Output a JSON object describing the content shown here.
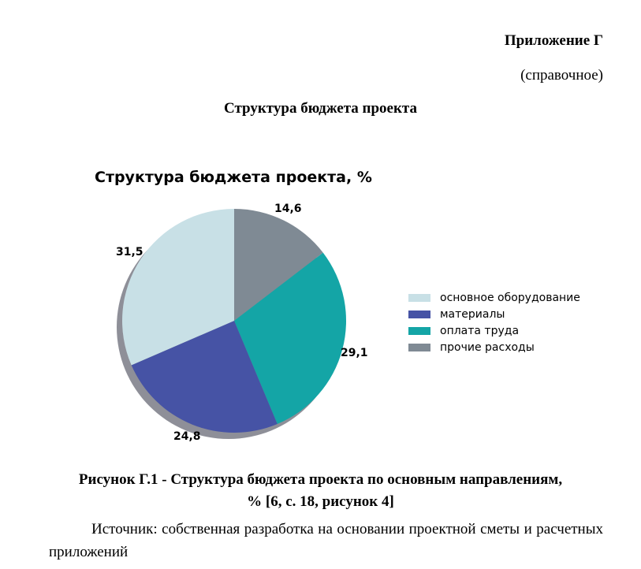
{
  "document": {
    "appendix_label": "Приложение Г",
    "appendix_type": "(справочное)",
    "heading": "Структура бюджета проекта",
    "caption_line1": "Рисунок Г.1 - Структура бюджета проекта по основным направлениям,",
    "caption_line2": "% [6, с. 18, рисунок 4]",
    "source": "Источник: собственная разработка на основании проектной сметы и расчетных приложений"
  },
  "chart_data": {
    "type": "pie",
    "title": "Структура бюджета проекта, %",
    "categories": [
      "основное оборудование",
      "материалы",
      "оплата труда",
      "прочие расходы"
    ],
    "values": [
      31.5,
      24.8,
      29.1,
      14.6
    ],
    "value_labels": [
      "31,5",
      "24,8",
      "29,1",
      "14,6"
    ],
    "colors": [
      "#c8e0e6",
      "#4653a5",
      "#14a5a6",
      "#7f8a94"
    ],
    "start_angle": "12 o'clock, counter-clockwise from основное оборудование",
    "shadow": true,
    "legend_position": "right"
  }
}
